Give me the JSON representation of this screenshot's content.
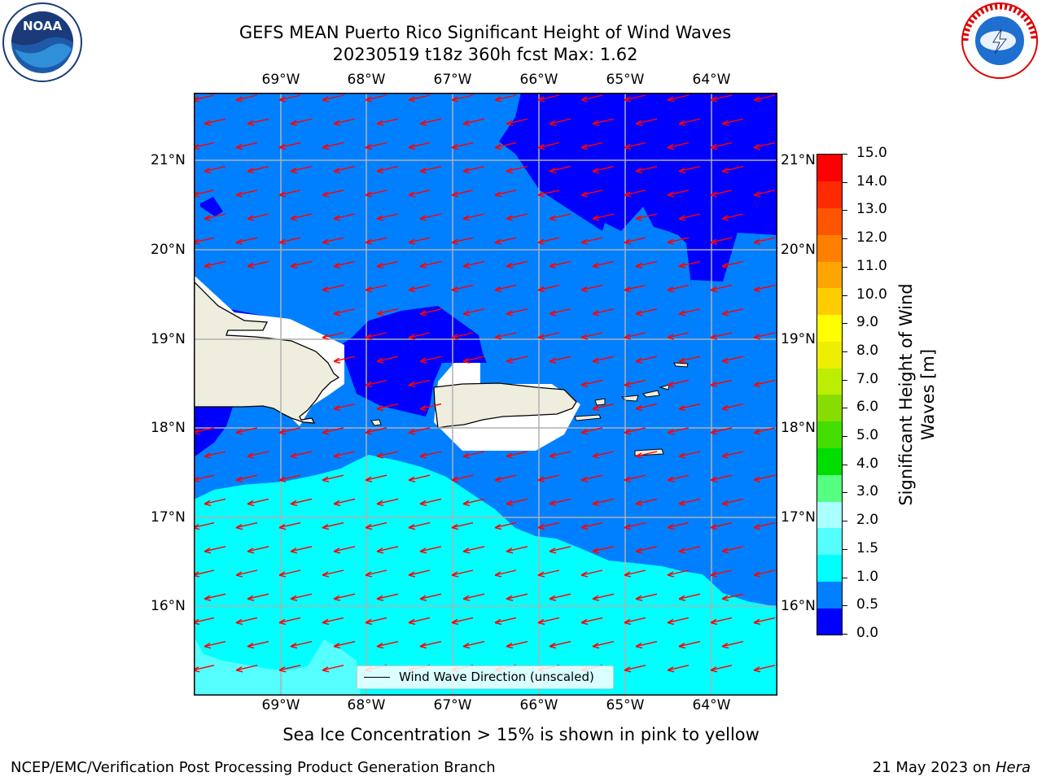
{
  "title_line1": "GEFS MEAN Puerto Rico Significant Height of Wind Waves",
  "title_line2": "20230519 t18z 360h fcst   Max: 1.62",
  "lon_labels": [
    "69°W",
    "68°W",
    "67°W",
    "66°W",
    "65°W",
    "64°W"
  ],
  "lat_labels_left": [
    "21°N",
    "20°N",
    "19°N",
    "18°N",
    "17°N",
    "16°N"
  ],
  "lat_labels_right": [
    "21°N",
    "20°N",
    "19°N",
    "18°N",
    "17°N",
    "16°N"
  ],
  "legend_label": "Wind Wave Direction (unscaled)",
  "colorbar": {
    "label_line1": "Significant Height of Wind",
    "label_line2": "Waves [m]",
    "ticks": [
      "15.0",
      "14.0",
      "13.0",
      "12.0",
      "11.0",
      "10.0",
      "9.0",
      "8.0",
      "7.0",
      "6.0",
      "5.0",
      "4.0",
      "3.0",
      "2.0",
      "1.5",
      "1.0",
      "0.5",
      "0.0"
    ],
    "colors": [
      "#0000ff",
      "#0080ff",
      "#00ffff",
      "#55ffff",
      "#aaffff",
      "#55ff80",
      "#00dd00",
      "#44dd00",
      "#88dd00",
      "#bbee00",
      "#eeee00",
      "#ffff00",
      "#ffcc00",
      "#ffa500",
      "#ff8000",
      "#ff5500",
      "#ff2a00",
      "#ff0000"
    ]
  },
  "notice": "Sea Ice Concentration > 15% is shown in pink to yellow",
  "footer_left": "NCEP/EMC/Verification Post Processing Product Generation Branch",
  "footer_right_prefix": "21 May 2023 on ",
  "footer_right_host": "Hera",
  "logo_left": "NOAA",
  "logo_right": "NATIONAL WEATHER SERVICE",
  "colors": {
    "wave_0_05": "#0000ff",
    "wave_05_10": "#0080ff",
    "wave_10_15": "#00ffff",
    "wave_15_20": "#55ffff",
    "land": "#efedde",
    "arrow": "#ff0000"
  },
  "arrow_direction": "toward west-southwest"
}
